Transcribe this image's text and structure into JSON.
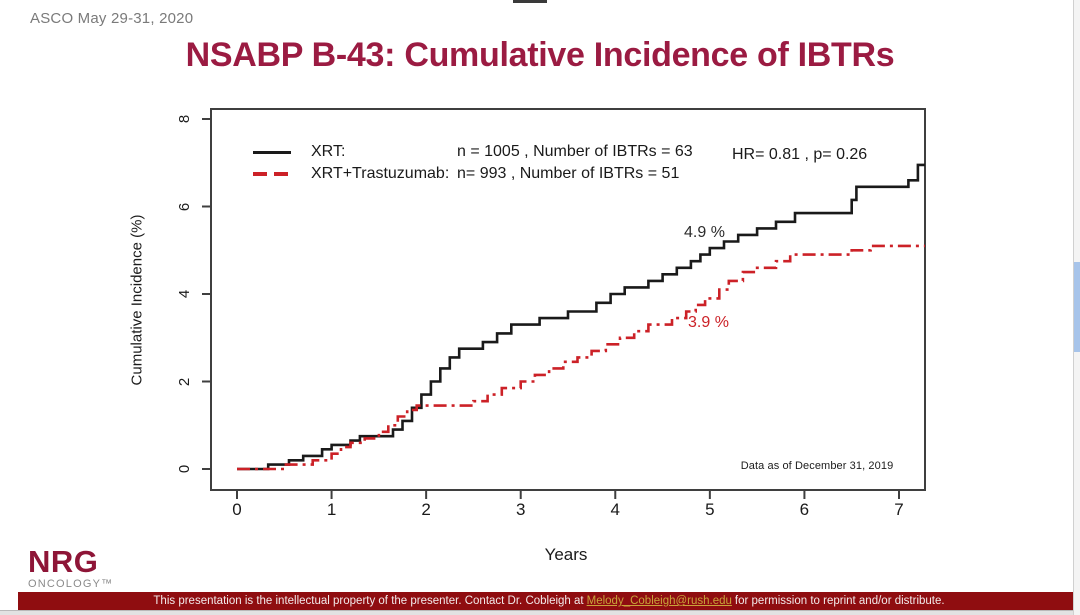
{
  "page": {
    "event_note": "ASCO May 29-31, 2020",
    "title": "NSABP B-43: Cumulative Incidence of IBTRs",
    "logo": {
      "name": "NRG",
      "sub": "ONCOLOGY™"
    },
    "footer": {
      "before_link": "This presentation is the intellectual property of the presenter. Contact Dr. Cobleigh at ",
      "link": "Melody_Cobleigh@rush.edu",
      "after_link": " for permission to reprint and/or distribute."
    },
    "colors": {
      "title": "#9b1b42",
      "footer_bg": "#8f0d10",
      "footer_link": "#c9a43a",
      "axis": "#3f3f3f",
      "scrollbar_thumb": "#a7c4ea"
    }
  },
  "chart_data": {
    "type": "line",
    "subtype": "step-function-cumulative-incidence",
    "title": "",
    "xlabel": "Years",
    "ylabel": "Cumulative Incidence (%)",
    "xlim": [
      0,
      7.3
    ],
    "ylim": [
      0,
      8
    ],
    "xticks": [
      0,
      1,
      2,
      3,
      4,
      5,
      6,
      7
    ],
    "yticks": [
      0,
      2,
      4,
      6,
      8
    ],
    "grid": false,
    "legend_position": "top-left-inside",
    "hr_text": "HR= 0.81 ,  p= 0.26",
    "note": "Data as of December 31, 2019",
    "annotations": [
      {
        "text": "4.9 %",
        "series": "XRT",
        "near_year": 4.85,
        "value_pct": 4.9
      },
      {
        "text": "3.9 %",
        "series": "XRT+Trastuzumab",
        "near_year": 4.95,
        "value_pct": 3.9
      }
    ],
    "series": [
      {
        "name": "XRT",
        "legend_label": "XRT:",
        "legend_stats": "n = 1005 , Number of IBTRs = 63",
        "n": 1005,
        "events": 63,
        "color": "#1a1a1a",
        "line_style": "solid",
        "start": [
          0,
          0
        ],
        "end_x": 7.28,
        "steps": [
          [
            0.33,
            0.1
          ],
          [
            0.55,
            0.2
          ],
          [
            0.7,
            0.3
          ],
          [
            0.9,
            0.45
          ],
          [
            1.0,
            0.55
          ],
          [
            1.2,
            0.65
          ],
          [
            1.3,
            0.75
          ],
          [
            1.65,
            0.9
          ],
          [
            1.75,
            1.1
          ],
          [
            1.85,
            1.4
          ],
          [
            1.95,
            1.7
          ],
          [
            2.05,
            2.0
          ],
          [
            2.15,
            2.3
          ],
          [
            2.25,
            2.55
          ],
          [
            2.35,
            2.75
          ],
          [
            2.6,
            2.9
          ],
          [
            2.75,
            3.1
          ],
          [
            2.9,
            3.3
          ],
          [
            3.2,
            3.45
          ],
          [
            3.5,
            3.6
          ],
          [
            3.8,
            3.8
          ],
          [
            3.95,
            4.0
          ],
          [
            4.1,
            4.15
          ],
          [
            4.35,
            4.3
          ],
          [
            4.5,
            4.45
          ],
          [
            4.65,
            4.6
          ],
          [
            4.8,
            4.75
          ],
          [
            4.9,
            4.9
          ],
          [
            5.0,
            5.05
          ],
          [
            5.15,
            5.2
          ],
          [
            5.3,
            5.35
          ],
          [
            5.5,
            5.5
          ],
          [
            5.7,
            5.65
          ],
          [
            5.9,
            5.85
          ],
          [
            6.5,
            6.15
          ],
          [
            6.55,
            6.45
          ],
          [
            7.1,
            6.6
          ],
          [
            7.2,
            6.95
          ]
        ]
      },
      {
        "name": "XRT+Trastuzumab",
        "legend_label": "XRT+Trastuzumab:",
        "legend_stats": "n= 993 , Number of IBTRs = 51",
        "n": 993,
        "events": 51,
        "color": "#cc2127",
        "line_style": "dash-dot",
        "start": [
          0,
          0
        ],
        "end_x": 7.28,
        "steps": [
          [
            0.5,
            0.1
          ],
          [
            0.8,
            0.2
          ],
          [
            1.0,
            0.35
          ],
          [
            1.1,
            0.5
          ],
          [
            1.2,
            0.6
          ],
          [
            1.35,
            0.7
          ],
          [
            1.5,
            0.85
          ],
          [
            1.6,
            1.0
          ],
          [
            1.7,
            1.2
          ],
          [
            1.8,
            1.35
          ],
          [
            1.9,
            1.45
          ],
          [
            2.5,
            1.55
          ],
          [
            2.65,
            1.7
          ],
          [
            2.8,
            1.85
          ],
          [
            3.0,
            2.0
          ],
          [
            3.15,
            2.15
          ],
          [
            3.3,
            2.3
          ],
          [
            3.45,
            2.45
          ],
          [
            3.6,
            2.55
          ],
          [
            3.75,
            2.7
          ],
          [
            3.9,
            2.85
          ],
          [
            4.05,
            3.0
          ],
          [
            4.2,
            3.15
          ],
          [
            4.35,
            3.3
          ],
          [
            4.6,
            3.45
          ],
          [
            4.75,
            3.6
          ],
          [
            4.85,
            3.75
          ],
          [
            4.95,
            3.9
          ],
          [
            5.1,
            4.1
          ],
          [
            5.2,
            4.3
          ],
          [
            5.35,
            4.5
          ],
          [
            5.5,
            4.6
          ],
          [
            5.7,
            4.75
          ],
          [
            5.85,
            4.9
          ],
          [
            6.5,
            5.0
          ],
          [
            6.7,
            5.1
          ]
        ]
      }
    ]
  }
}
